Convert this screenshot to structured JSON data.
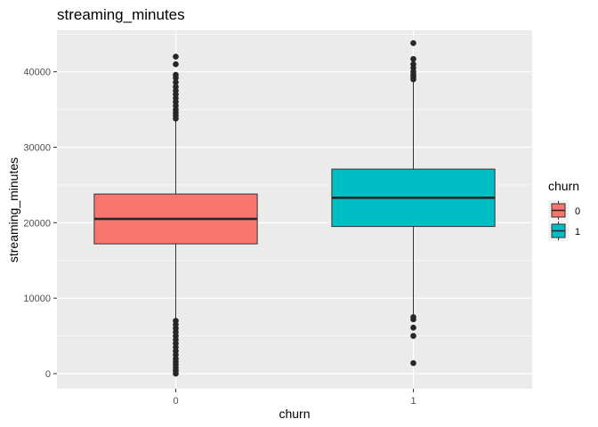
{
  "chart_data": {
    "type": "boxplot",
    "title": "streaming_minutes",
    "xlabel": "churn",
    "ylabel": "streaming_minutes",
    "ylim": [
      -2000,
      45500
    ],
    "yticks": [
      0,
      10000,
      20000,
      30000,
      40000
    ],
    "ytick_labels": [
      "0",
      "10000",
      "20000",
      "30000",
      "40000"
    ],
    "categories": [
      "0",
      "1"
    ],
    "grid": true,
    "legend": {
      "title": "churn",
      "position": "right",
      "entries": [
        {
          "label": "0",
          "color": "#f8766d"
        },
        {
          "label": "1",
          "color": "#00bfc4"
        }
      ]
    },
    "boxes": [
      {
        "category": "0",
        "color": "#f8766d",
        "q1": 17200,
        "median": 20500,
        "q3": 23800,
        "whisker_low": 7300,
        "whisker_high": 33700,
        "outliers": [
          0,
          400,
          800,
          1200,
          1600,
          2000,
          2500,
          3000,
          3500,
          4000,
          4500,
          5000,
          5500,
          6000,
          6500,
          7000,
          33800,
          34200,
          34600,
          35000,
          35500,
          36000,
          36500,
          37000,
          37500,
          38000,
          38600,
          39200,
          39600,
          41000,
          42000
        ]
      },
      {
        "category": "1",
        "color": "#00bfc4",
        "q1": 19500,
        "median": 23300,
        "q3": 27100,
        "whisker_low": 7900,
        "whisker_high": 38900,
        "outliers": [
          1400,
          5000,
          6100,
          7200,
          7500,
          39000,
          39300,
          39600,
          40000,
          40500,
          41000,
          41700,
          43800
        ]
      }
    ]
  }
}
